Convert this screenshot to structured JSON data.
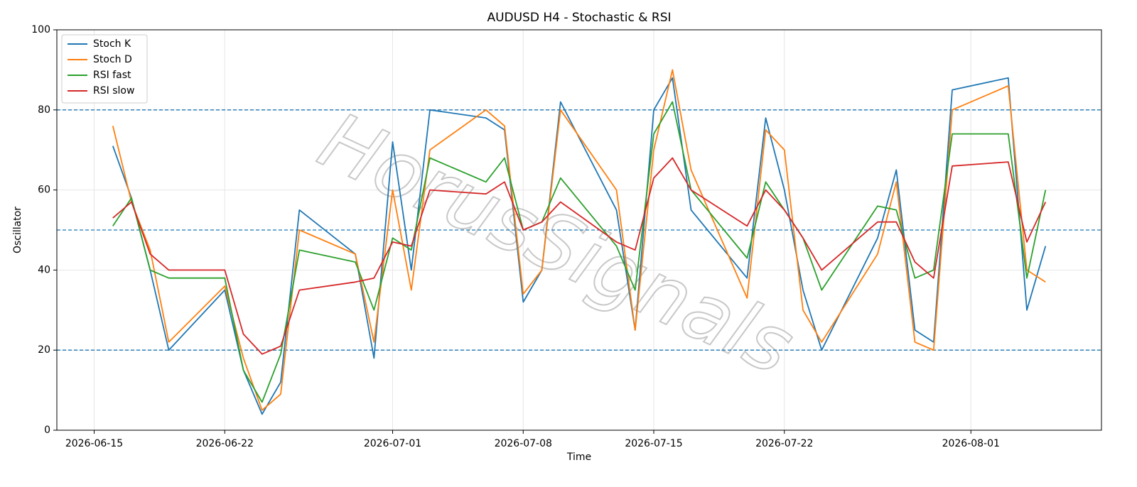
{
  "chart_data": {
    "type": "line",
    "title": "AUDUSD H4 - Stochastic & RSI",
    "x_label": "Time",
    "y_label": "Oscillator",
    "watermark": "HorusSignals",
    "x": [
      "2026-06-16",
      "2026-06-17",
      "2026-06-18",
      "2026-06-19",
      "2026-06-22",
      "2026-06-23",
      "2026-06-24",
      "2026-06-25",
      "2026-06-26",
      "2026-06-29",
      "2026-06-30",
      "2026-07-01",
      "2026-07-02",
      "2026-07-03",
      "2026-07-06",
      "2026-07-07",
      "2026-07-08",
      "2026-07-09",
      "2026-07-10",
      "2026-07-13",
      "2026-07-14",
      "2026-07-15",
      "2026-07-16",
      "2026-07-17",
      "2026-07-20",
      "2026-07-21",
      "2026-07-22",
      "2026-07-23",
      "2026-07-24",
      "2026-07-27",
      "2026-07-28",
      "2026-07-29",
      "2026-07-30",
      "2026-07-31",
      "2026-08-03",
      "2026-08-04",
      "2026-08-05"
    ],
    "series": [
      {
        "name": "Stoch K",
        "color": "#1f77b4",
        "values": [
          71,
          58,
          40,
          20,
          35,
          15,
          4,
          12,
          55,
          44,
          18,
          72,
          40,
          80,
          78,
          75,
          32,
          40,
          82,
          55,
          25,
          80,
          88,
          55,
          38,
          78,
          60,
          35,
          20,
          48,
          65,
          25,
          22,
          85,
          88,
          30,
          46
        ]
      },
      {
        "name": "Stoch D",
        "color": "#ff7f0e",
        "values": [
          76,
          57,
          45,
          22,
          36,
          18,
          5,
          9,
          50,
          44,
          22,
          60,
          35,
          70,
          80,
          76,
          34,
          40,
          80,
          60,
          25,
          70,
          90,
          65,
          33,
          75,
          70,
          30,
          22,
          44,
          62,
          22,
          20,
          80,
          86,
          40,
          37
        ]
      },
      {
        "name": "RSI fast",
        "color": "#2ca02c",
        "values": [
          51,
          58,
          40,
          38,
          38,
          15,
          7,
          19,
          45,
          42,
          30,
          48,
          45,
          68,
          62,
          68,
          50,
          52,
          63,
          46,
          35,
          74,
          82,
          60,
          43,
          62,
          55,
          48,
          35,
          56,
          55,
          38,
          40,
          74,
          74,
          38,
          60
        ]
      },
      {
        "name": "RSI slow",
        "color": "#d62728",
        "values": [
          53,
          57,
          44,
          40,
          40,
          24,
          19,
          21,
          35,
          37,
          38,
          47,
          46,
          60,
          59,
          62,
          50,
          52,
          57,
          47,
          45,
          63,
          68,
          60,
          51,
          60,
          55,
          48,
          40,
          52,
          52,
          42,
          38,
          66,
          67,
          47,
          57
        ]
      }
    ],
    "xlim": [
      "2026-06-13",
      "2026-08-08"
    ],
    "xticks": [
      "2026-06-15",
      "2026-06-22",
      "2026-07-01",
      "2026-07-08",
      "2026-07-15",
      "2026-07-22",
      "2026-08-01"
    ],
    "ylim": [
      0,
      100
    ],
    "yticks": [
      0,
      20,
      40,
      60,
      80,
      100
    ],
    "hlines": [
      20,
      50,
      80
    ],
    "hline_color": "#1f77b4",
    "grid": true,
    "legend": "upper left"
  }
}
